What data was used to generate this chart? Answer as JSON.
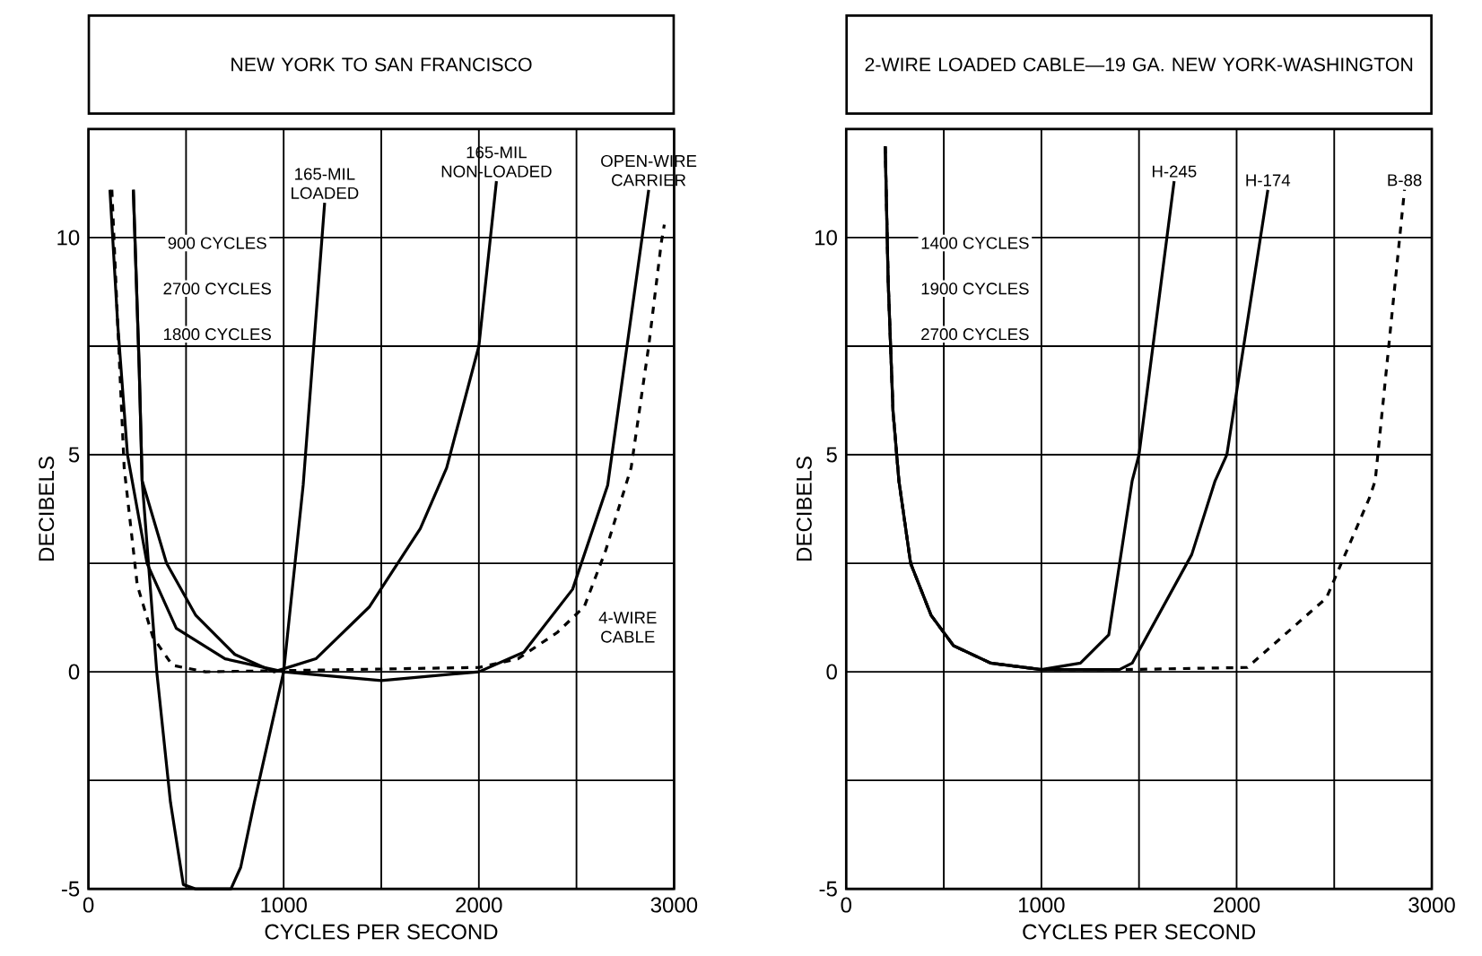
{
  "chart_data": [
    {
      "type": "line",
      "title": "NEW YORK TO SAN FRANCISCO",
      "xlabel": "CYCLES PER SECOND",
      "ylabel": "DECIBELS",
      "xlim": [
        0,
        3000
      ],
      "ylim": [
        -5,
        12.5
      ],
      "xticks": [
        0,
        1000,
        2000,
        3000
      ],
      "yticks": [
        -5,
        0,
        5,
        10
      ],
      "grid": true,
      "annotations": [
        "900 CYCLES",
        "2700 CYCLES",
        "1800 CYCLES"
      ],
      "series": [
        {
          "name": "165-MIL LOADED",
          "color": "#000000",
          "line_style": "solid",
          "x": [
            230,
            260,
            275,
            350,
            420,
            486,
            550,
            650,
            730,
            780,
            850,
            1000,
            1100,
            1210
          ],
          "values": [
            11.1,
            7,
            4.4,
            0,
            -3,
            -4.9,
            -5,
            -5,
            -5,
            -4.5,
            -3,
            0,
            4.3,
            10.8
          ]
        },
        {
          "name": "165-MIL NON-LOADED",
          "color": "#000000",
          "line_style": "solid",
          "x": [
            230,
            260,
            275,
            400,
            550,
            750,
            950,
            1165,
            1440,
            1700,
            1835,
            2000,
            2090
          ],
          "values": [
            11.1,
            7,
            4.4,
            2.5,
            1.3,
            0.4,
            0,
            0.3,
            1.5,
            3.3,
            4.7,
            7.5,
            11.3
          ]
        },
        {
          "name": "OPEN-WIRE CARRIER",
          "color": "#000000",
          "line_style": "solid",
          "x": [
            110,
            150,
            200,
            300,
            450,
            700,
            1000,
            1500,
            2000,
            2230,
            2480,
            2660,
            2870
          ],
          "values": [
            11.1,
            8,
            5,
            2.5,
            1,
            0.3,
            0,
            -0.2,
            0,
            0.45,
            1.9,
            4.3,
            11.1
          ]
        },
        {
          "name": "4-WIRE CABLE",
          "color": "#000000",
          "line_style": "dashed",
          "x": [
            120,
            150,
            183,
            250,
            330,
            430,
            600,
            2000,
            2200,
            2400,
            2540,
            2650,
            2780,
            2870,
            2935,
            2950
          ],
          "values": [
            11.1,
            8,
            4.7,
            2,
            0.8,
            0.15,
            0,
            0.1,
            0.3,
            0.9,
            1.5,
            2.8,
            4.7,
            7.5,
            9.9,
            10.3
          ]
        }
      ]
    },
    {
      "type": "line",
      "title": "2-WIRE LOADED CABLE—19 GA. NEW YORK-WASHINGTON",
      "xlabel": "CYCLES PER SECOND",
      "ylabel": "DECIBELS",
      "xlim": [
        0,
        3000
      ],
      "ylim": [
        -5,
        12.5
      ],
      "xticks": [
        0,
        1000,
        2000,
        3000
      ],
      "yticks": [
        -5,
        0,
        5,
        10
      ],
      "grid": true,
      "annotations": [
        "1400 CYCLES",
        "1900 CYCLES",
        "2700 CYCLES"
      ],
      "series": [
        {
          "name": "H-245",
          "color": "#000000",
          "line_style": "solid",
          "x": [
            200,
            215,
            240,
            270,
            330,
            435,
            550,
            740,
            1000,
            1200,
            1345,
            1465,
            1500,
            1680
          ],
          "values": [
            12.1,
            9,
            6,
            4.4,
            2.5,
            1.3,
            0.6,
            0.2,
            0.05,
            0.2,
            0.85,
            4.4,
            5,
            11.3
          ]
        },
        {
          "name": "H-174",
          "color": "#000000",
          "line_style": "solid",
          "x": [
            200,
            215,
            240,
            270,
            330,
            435,
            550,
            740,
            1000,
            1400,
            1465,
            1770,
            1890,
            1950,
            2160
          ],
          "values": [
            12.1,
            9,
            6,
            4.4,
            2.5,
            1.3,
            0.6,
            0.2,
            0.05,
            0.05,
            0.2,
            2.7,
            4.4,
            5,
            11.1
          ]
        },
        {
          "name": "B-88",
          "color": "#000000",
          "line_style": "dashed",
          "x": [
            200,
            215,
            240,
            270,
            330,
            435,
            550,
            740,
            1000,
            1400,
            2055,
            2460,
            2680,
            2710,
            2860
          ],
          "values": [
            12.1,
            9,
            6,
            4.4,
            2.5,
            1.3,
            0.6,
            0.2,
            0.05,
            0.05,
            0.1,
            1.7,
            4,
            4.4,
            11.1
          ]
        }
      ]
    }
  ]
}
